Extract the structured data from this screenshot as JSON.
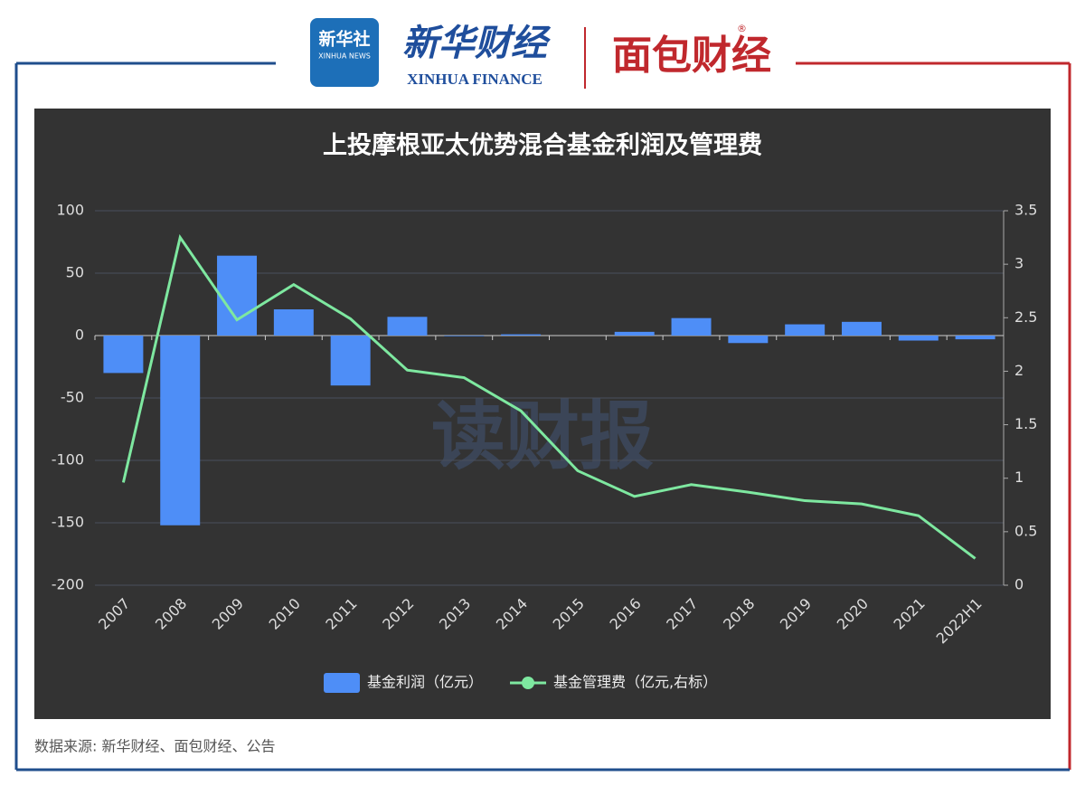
{
  "header": {
    "logo_text": "新华社",
    "logo_sub": "XINHUA NEWS",
    "brand": "新华财经",
    "brand_sub": "XINHUA FINANCE",
    "brand2": "面包财经",
    "registered": "®"
  },
  "watermark": "读财报",
  "source": "数据来源: 新华财经、面包财经、公告",
  "chart_data": {
    "type": "bar-line",
    "title": "上投摩根亚太优势混合基金利润及管理费",
    "categories": [
      "2007",
      "2008",
      "2009",
      "2010",
      "2011",
      "2012",
      "2013",
      "2014",
      "2015",
      "2016",
      "2017",
      "2018",
      "2019",
      "2020",
      "2021",
      "2022H1"
    ],
    "series": [
      {
        "name": "基金利润（亿元）",
        "color": "#4e8ef7",
        "type": "bar",
        "values": [
          -30,
          -152,
          64,
          21,
          -40,
          15,
          -0.5,
          1,
          0,
          3,
          14,
          -6,
          9,
          11,
          -4,
          -3
        ]
      },
      {
        "name": "基金管理费（亿元,右标）",
        "color": "#7ee8a0",
        "type": "line",
        "axis": "y2",
        "values": [
          0.96,
          3.25,
          2.48,
          2.81,
          2.49,
          2.01,
          1.94,
          1.63,
          1.07,
          0.83,
          0.94,
          0.87,
          0.79,
          0.76,
          0.65,
          0.25
        ]
      }
    ],
    "ylim": [
      -200,
      100
    ],
    "yticks": [
      -200,
      -150,
      -100,
      -50,
      0,
      50,
      100
    ],
    "y2lim": [
      0,
      3.5
    ],
    "y2ticks": [
      0,
      0.5,
      1,
      1.5,
      2,
      2.5,
      3,
      3.5
    ],
    "grid": true
  }
}
